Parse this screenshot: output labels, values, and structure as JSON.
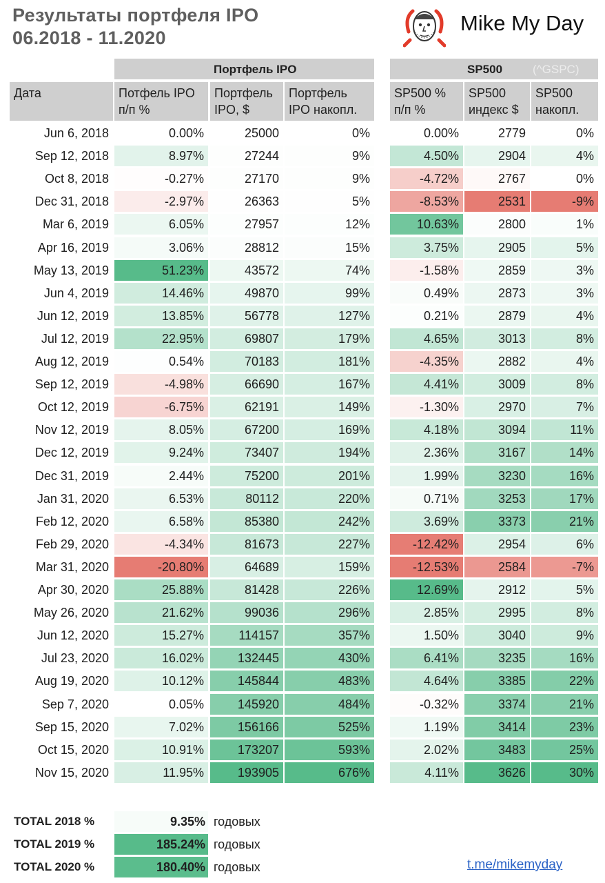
{
  "title_line1": "Результаты портфеля IPO",
  "title_line2": "06.2018 - 11.2020",
  "brand": "Mike My Day",
  "groups": {
    "ipo": "Портфель IPO",
    "sp": "SP500",
    "gspc": "(^GSPC)"
  },
  "headers": [
    "Дата",
    "Потфель IPO\nп/п %",
    "Портфель\nIPO, $",
    "Портфель\nIPO накопл.",
    "SP500 %\nп/п %",
    "SP500\nиндекс $",
    "SP500\nнакопл."
  ],
  "colors": {
    "header_gray": "#cfcfcf",
    "green_max": "#57bb8a",
    "red_max": "#e67c73",
    "link": "#2a62c6"
  },
  "rows": [
    [
      "Jun 6, 2018",
      "0.00%",
      "25000",
      "0%",
      "0.00%",
      "2779",
      "0%"
    ],
    [
      "Sep 12, 2018",
      "8.97%",
      "27244",
      "9%",
      "4.50%",
      "2904",
      "4%"
    ],
    [
      "Oct 8, 2018",
      "-0.27%",
      "27170",
      "9%",
      "-4.72%",
      "2767",
      "0%"
    ],
    [
      "Dec 31, 2018",
      "-2.97%",
      "26363",
      "5%",
      "-8.53%",
      "2531",
      "-9%"
    ],
    [
      "Mar 6, 2019",
      "6.05%",
      "27957",
      "12%",
      "10.63%",
      "2800",
      "1%"
    ],
    [
      "Apr 16, 2019",
      "3.06%",
      "28812",
      "15%",
      "3.75%",
      "2905",
      "5%"
    ],
    [
      "May 13, 2019",
      "51.23%",
      "43572",
      "74%",
      "-1.58%",
      "2859",
      "3%"
    ],
    [
      "Jun 4, 2019",
      "14.46%",
      "49870",
      "99%",
      "0.49%",
      "2873",
      "3%"
    ],
    [
      "Jun 12, 2019",
      "13.85%",
      "56778",
      "127%",
      "0.21%",
      "2879",
      "4%"
    ],
    [
      "Jul 12, 2019",
      "22.95%",
      "69807",
      "179%",
      "4.65%",
      "3013",
      "8%"
    ],
    [
      "Aug 12, 2019",
      "0.54%",
      "70183",
      "181%",
      "-4.35%",
      "2882",
      "4%"
    ],
    [
      "Sep 12, 2019",
      "-4.98%",
      "66690",
      "167%",
      "4.41%",
      "3009",
      "8%"
    ],
    [
      "Oct 12, 2019",
      "-6.75%",
      "62191",
      "149%",
      "-1.30%",
      "2970",
      "7%"
    ],
    [
      "Nov 12, 2019",
      "8.05%",
      "67200",
      "169%",
      "4.18%",
      "3094",
      "11%"
    ],
    [
      "Dec 12, 2019",
      "9.24%",
      "73407",
      "194%",
      "2.36%",
      "3167",
      "14%"
    ],
    [
      "Dec 31, 2019",
      "2.44%",
      "75200",
      "201%",
      "1.99%",
      "3230",
      "16%"
    ],
    [
      "Jan 31, 2020",
      "6.53%",
      "80112",
      "220%",
      "0.71%",
      "3253",
      "17%"
    ],
    [
      "Feb 12, 2020",
      "6.58%",
      "85380",
      "242%",
      "3.69%",
      "3373",
      "21%"
    ],
    [
      "Feb 29, 2020",
      "-4.34%",
      "81673",
      "227%",
      "-12.42%",
      "2954",
      "6%"
    ],
    [
      "Mar 31, 2020",
      "-20.80%",
      "64689",
      "159%",
      "-12.53%",
      "2584",
      "-7%"
    ],
    [
      "Apr 30, 2020",
      "25.88%",
      "81428",
      "226%",
      "12.69%",
      "2912",
      "5%"
    ],
    [
      "May 26, 2020",
      "21.62%",
      "99036",
      "296%",
      "2.85%",
      "2995",
      "8%"
    ],
    [
      "Jun 12, 2020",
      "15.27%",
      "114157",
      "357%",
      "1.50%",
      "3040",
      "9%"
    ],
    [
      "Jul 23, 2020",
      "16.02%",
      "132445",
      "430%",
      "6.41%",
      "3235",
      "16%"
    ],
    [
      "Aug 19, 2020",
      "10.12%",
      "145844",
      "483%",
      "4.64%",
      "3385",
      "22%"
    ],
    [
      "Sep 7, 2020",
      "0.05%",
      "145920",
      "484%",
      "-0.32%",
      "3374",
      "21%"
    ],
    [
      "Sep 15, 2020",
      "7.02%",
      "156166",
      "525%",
      "1.19%",
      "3414",
      "23%"
    ],
    [
      "Oct 15, 2020",
      "10.91%",
      "173207",
      "593%",
      "2.02%",
      "3483",
      "25%"
    ],
    [
      "Nov 15, 2020",
      "11.95%",
      "193905",
      "676%",
      "4.11%",
      "3626",
      "30%"
    ]
  ],
  "totals": [
    {
      "label": "TOTAL 2018 %",
      "value": "9.35%",
      "unit": "годовых"
    },
    {
      "label": "TOTAL 2019 %",
      "value": "185.24%",
      "unit": "годовых"
    },
    {
      "label": "TOTAL 2020 %",
      "value": "180.40%",
      "unit": "годовых"
    }
  ],
  "link": "t.me/mikemyday"
}
